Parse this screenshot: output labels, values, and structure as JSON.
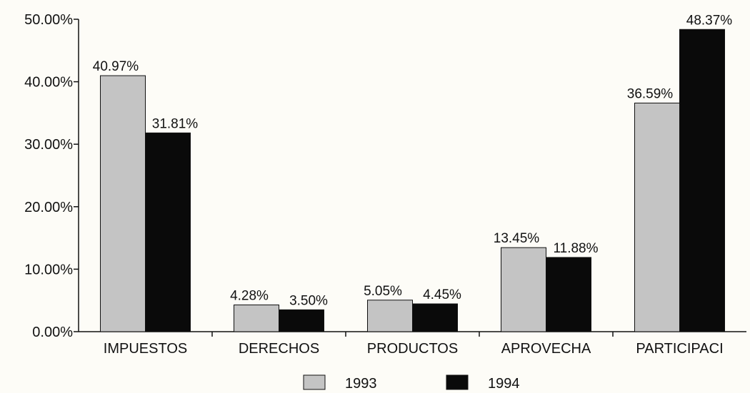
{
  "chart_data": {
    "type": "bar",
    "title": "",
    "xlabel": "",
    "ylabel": "",
    "categories": [
      "IMPUESTOS",
      "DERECHOS",
      "PRODUCTOS",
      "APROVECHA",
      "PARTICIPACI"
    ],
    "series": [
      {
        "name": "1993",
        "values": [
          40.97,
          4.28,
          5.05,
          13.45,
          36.59
        ],
        "labels": [
          "40.97%",
          "4.28%",
          "5.05%",
          "13.45%",
          "36.59%"
        ],
        "color": "#c4c4c4"
      },
      {
        "name": "1994",
        "values": [
          31.81,
          3.5,
          4.45,
          11.88,
          48.37
        ],
        "labels": [
          "31.81%",
          "3.50%",
          "4.45%",
          "11.88%",
          "48.37%"
        ],
        "color": "#0a0a0a"
      }
    ],
    "ylim": [
      0,
      50
    ],
    "yticks": [
      "0.00%",
      "10.00%",
      "20.00%",
      "30.00%",
      "40.00%",
      "50.00%"
    ],
    "grid": false,
    "legend": "bottom"
  }
}
